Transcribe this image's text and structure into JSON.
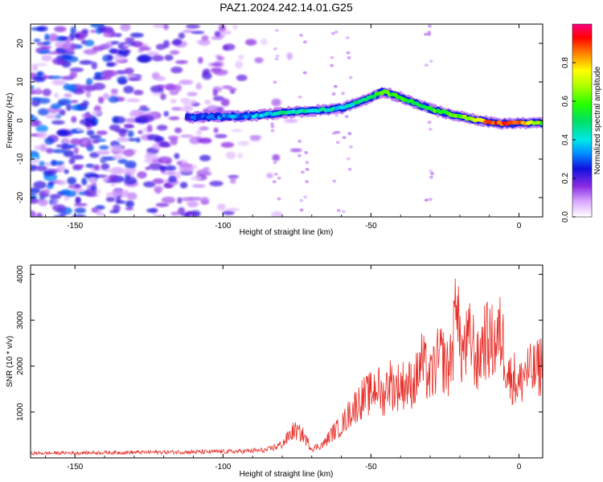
{
  "title": "PAZ1.2024.242.14.01.G25",
  "chart_data": [
    {
      "type": "heatmap",
      "title": "PAZ1.2024.242.14.01.G25",
      "xlabel": "Height of straight line (km)",
      "ylabel": "Frequency (Hz)",
      "xlim": [
        -165,
        8
      ],
      "ylim": [
        -25,
        25
      ],
      "xticks": [
        -150,
        -100,
        -50,
        0
      ],
      "yticks": [
        -20,
        -10,
        0,
        10,
        20
      ],
      "colorbar": {
        "label": "Normalized spectral amplitude",
        "range": [
          0,
          1
        ],
        "ticks": [
          0.0,
          0.2,
          0.4,
          0.6,
          0.8
        ],
        "tick_labels": [
          "0.0",
          "0.2",
          "0.4",
          "0.6",
          "0.8"
        ],
        "colormap": "gist_ncar-like (white, violet, blue, cyan, green, yellow, red, magenta)"
      },
      "noise_region": {
        "x_range": [
          -165,
          -85
        ],
        "y_range": [
          -25,
          25
        ],
        "amplitude_range": [
          0.05,
          0.35
        ]
      },
      "ridge": {
        "name": "Doppler ridge",
        "x": [
          -112,
          -100,
          -90,
          -80,
          -70,
          -60,
          -55,
          -50,
          -46,
          -40,
          -35,
          -30,
          -25,
          -20,
          -15,
          -10,
          -5,
          0,
          8
        ],
        "frequency": [
          0.8,
          1.0,
          1.2,
          2.0,
          2.5,
          3.2,
          4.5,
          6.0,
          7.5,
          6.0,
          4.5,
          3.0,
          2.0,
          1.0,
          0.3,
          -0.5,
          -0.8,
          -0.7,
          -0.6
        ],
        "amplitude": [
          0.25,
          0.3,
          0.35,
          0.45,
          0.45,
          0.4,
          0.45,
          0.5,
          0.6,
          0.55,
          0.55,
          0.55,
          0.6,
          0.6,
          0.75,
          0.85,
          0.9,
          0.9,
          0.6
        ]
      }
    },
    {
      "type": "line",
      "xlabel": "Height of straight line (km)",
      "ylabel": "SNR (10 * v/v)",
      "xlim": [
        -165,
        8
      ],
      "ylim": [
        0,
        4200
      ],
      "xticks": [
        -150,
        -100,
        -50,
        0
      ],
      "yticks": [
        1000,
        2000,
        3000,
        4000
      ],
      "color": "#e8302a",
      "series": [
        {
          "x": [
            -165,
            -150,
            -130,
            -110,
            -95,
            -85,
            -80,
            -76,
            -73,
            -70,
            -66,
            -63,
            -60,
            -57,
            -53,
            -50,
            -48,
            -46,
            -44,
            -42,
            -40,
            -37,
            -35,
            -33,
            -30,
            -28,
            -26,
            -24,
            -22,
            -21,
            -20,
            -18,
            -16,
            -14,
            -12,
            -10,
            -8,
            -6,
            -4,
            -3,
            -2,
            0,
            2,
            4,
            6,
            8
          ],
          "y": [
            100,
            110,
            120,
            130,
            140,
            170,
            300,
            600,
            500,
            200,
            300,
            550,
            700,
            1000,
            1300,
            1400,
            1600,
            1300,
            1700,
            1500,
            1600,
            1600,
            1650,
            2100,
            1700,
            2050,
            2200,
            1900,
            2600,
            4100,
            2300,
            2400,
            2600,
            2000,
            2600,
            2500,
            2500,
            2700,
            2000,
            1700,
            1800,
            1550,
            1900,
            1850,
            1900,
            2100
          ]
        }
      ]
    }
  ]
}
